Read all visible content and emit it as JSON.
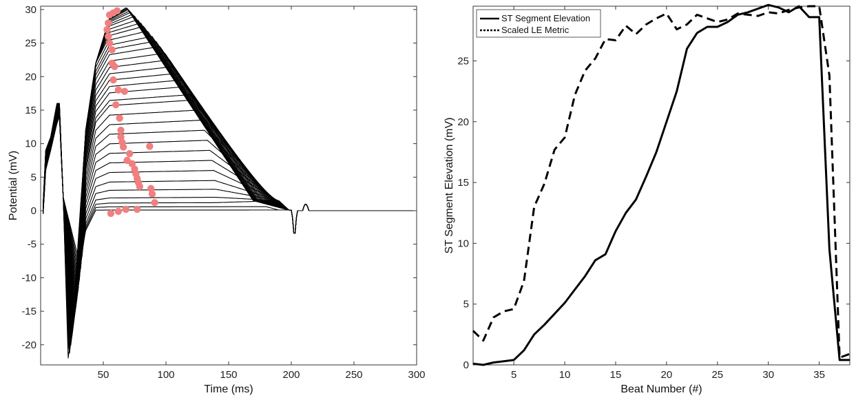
{
  "chart_data": [
    {
      "type": "line",
      "xlabel": "Time (ms)",
      "ylabel": "Potential (mV)",
      "xlim": [
        0,
        300
      ],
      "ylim": [
        -23,
        30.5
      ],
      "xticks": [
        50,
        100,
        150,
        200,
        250,
        300
      ],
      "yticks": [
        -20,
        -15,
        -10,
        -5,
        0,
        5,
        10,
        15,
        20,
        25,
        30
      ],
      "grid": false,
      "line_color": "#000000",
      "marker_color": "#f08080",
      "num_traces": 36,
      "peak_values": [
        0.1,
        0.6,
        1.2,
        2.0,
        3.2,
        4.5,
        6.0,
        7.5,
        9.0,
        10.5,
        12.0,
        13.5,
        15.0,
        16.5,
        17.3,
        18.5,
        19.5,
        20.5,
        21.5,
        22.5,
        23.5,
        24.5,
        25.3,
        26.0,
        26.8,
        27.5,
        28.0,
        28.5,
        29.0,
        29.3,
        29.6,
        29.8,
        30.0,
        30.1,
        30.2,
        30.3
      ],
      "markers": [
        {
          "x": 55,
          "y": 29.2
        },
        {
          "x": 58,
          "y": 29.5
        },
        {
          "x": 61,
          "y": 29.8
        },
        {
          "x": 54,
          "y": 28.0
        },
        {
          "x": 53,
          "y": 27.0
        },
        {
          "x": 54,
          "y": 26.0
        },
        {
          "x": 55,
          "y": 25.0
        },
        {
          "x": 57,
          "y": 24.0
        },
        {
          "x": 57,
          "y": 22.0
        },
        {
          "x": 59,
          "y": 21.5
        },
        {
          "x": 58,
          "y": 19.5
        },
        {
          "x": 62,
          "y": 18.0
        },
        {
          "x": 67,
          "y": 17.8
        },
        {
          "x": 60,
          "y": 15.8
        },
        {
          "x": 63,
          "y": 13.8
        },
        {
          "x": 64,
          "y": 12.0
        },
        {
          "x": 64,
          "y": 11.0
        },
        {
          "x": 65,
          "y": 10.2
        },
        {
          "x": 66,
          "y": 9.5
        },
        {
          "x": 87,
          "y": 9.6
        },
        {
          "x": 71,
          "y": 8.5
        },
        {
          "x": 69,
          "y": 7.5
        },
        {
          "x": 73,
          "y": 7.0
        },
        {
          "x": 75,
          "y": 6.2
        },
        {
          "x": 76,
          "y": 5.5
        },
        {
          "x": 77,
          "y": 4.8
        },
        {
          "x": 78,
          "y": 4.2
        },
        {
          "x": 79,
          "y": 3.6
        },
        {
          "x": 88,
          "y": 3.3
        },
        {
          "x": 89,
          "y": 2.5
        },
        {
          "x": 91,
          "y": 1.2
        },
        {
          "x": 68,
          "y": 0.2
        },
        {
          "x": 77,
          "y": 0.2
        },
        {
          "x": 62,
          "y": -0.1
        },
        {
          "x": 56,
          "y": -0.4
        }
      ]
    },
    {
      "type": "line",
      "xlabel": "Beat Number (#)",
      "ylabel": "ST Segment Elevation (mV)",
      "xlim": [
        1,
        38
      ],
      "ylim": [
        0,
        29.5
      ],
      "xticks": [
        5,
        10,
        15,
        20,
        25,
        30,
        35
      ],
      "yticks": [
        0,
        5,
        10,
        15,
        20,
        25
      ],
      "grid": false,
      "legend": "top-left",
      "series": [
        {
          "name": "ST Segment Elevation",
          "style": "solid",
          "x": [
            1,
            2,
            3,
            4,
            5,
            6,
            7,
            8,
            9,
            10,
            11,
            12,
            13,
            14,
            15,
            16,
            17,
            18,
            19,
            20,
            21,
            22,
            23,
            24,
            25,
            26,
            27,
            28,
            29,
            30,
            31,
            32,
            33,
            34,
            35,
            36,
            37,
            38
          ],
          "values": [
            0.1,
            0.0,
            0.2,
            0.3,
            0.4,
            1.2,
            2.5,
            3.3,
            4.2,
            5.1,
            6.2,
            7.3,
            8.6,
            9.1,
            11.0,
            12.5,
            13.6,
            15.5,
            17.5,
            20.0,
            22.5,
            26.0,
            27.3,
            27.8,
            27.8,
            28.2,
            28.8,
            29.0,
            29.3,
            29.6,
            29.4,
            29.0,
            29.5,
            28.6,
            28.6,
            9.5,
            0.4,
            0.4
          ]
        },
        {
          "name": "Scaled LE Metric",
          "style": "dashed",
          "x": [
            1,
            2,
            3,
            4,
            5,
            6,
            7,
            8,
            9,
            10,
            11,
            12,
            13,
            14,
            15,
            16,
            17,
            18,
            19,
            20,
            21,
            22,
            23,
            24,
            25,
            26,
            27,
            28,
            29,
            30,
            31,
            32,
            33,
            34,
            35,
            36,
            37,
            38
          ],
          "values": [
            2.8,
            2.0,
            3.9,
            4.4,
            4.6,
            6.9,
            13.0,
            14.9,
            17.7,
            18.7,
            22.2,
            24.2,
            25.2,
            26.8,
            26.7,
            27.9,
            27.2,
            28.0,
            28.5,
            28.9,
            27.6,
            28.0,
            28.8,
            28.5,
            28.2,
            28.4,
            28.9,
            28.8,
            28.7,
            29.0,
            28.9,
            29.2,
            29.4,
            29.5,
            29.5,
            23.8,
            0.6,
            0.9
          ]
        }
      ]
    }
  ]
}
